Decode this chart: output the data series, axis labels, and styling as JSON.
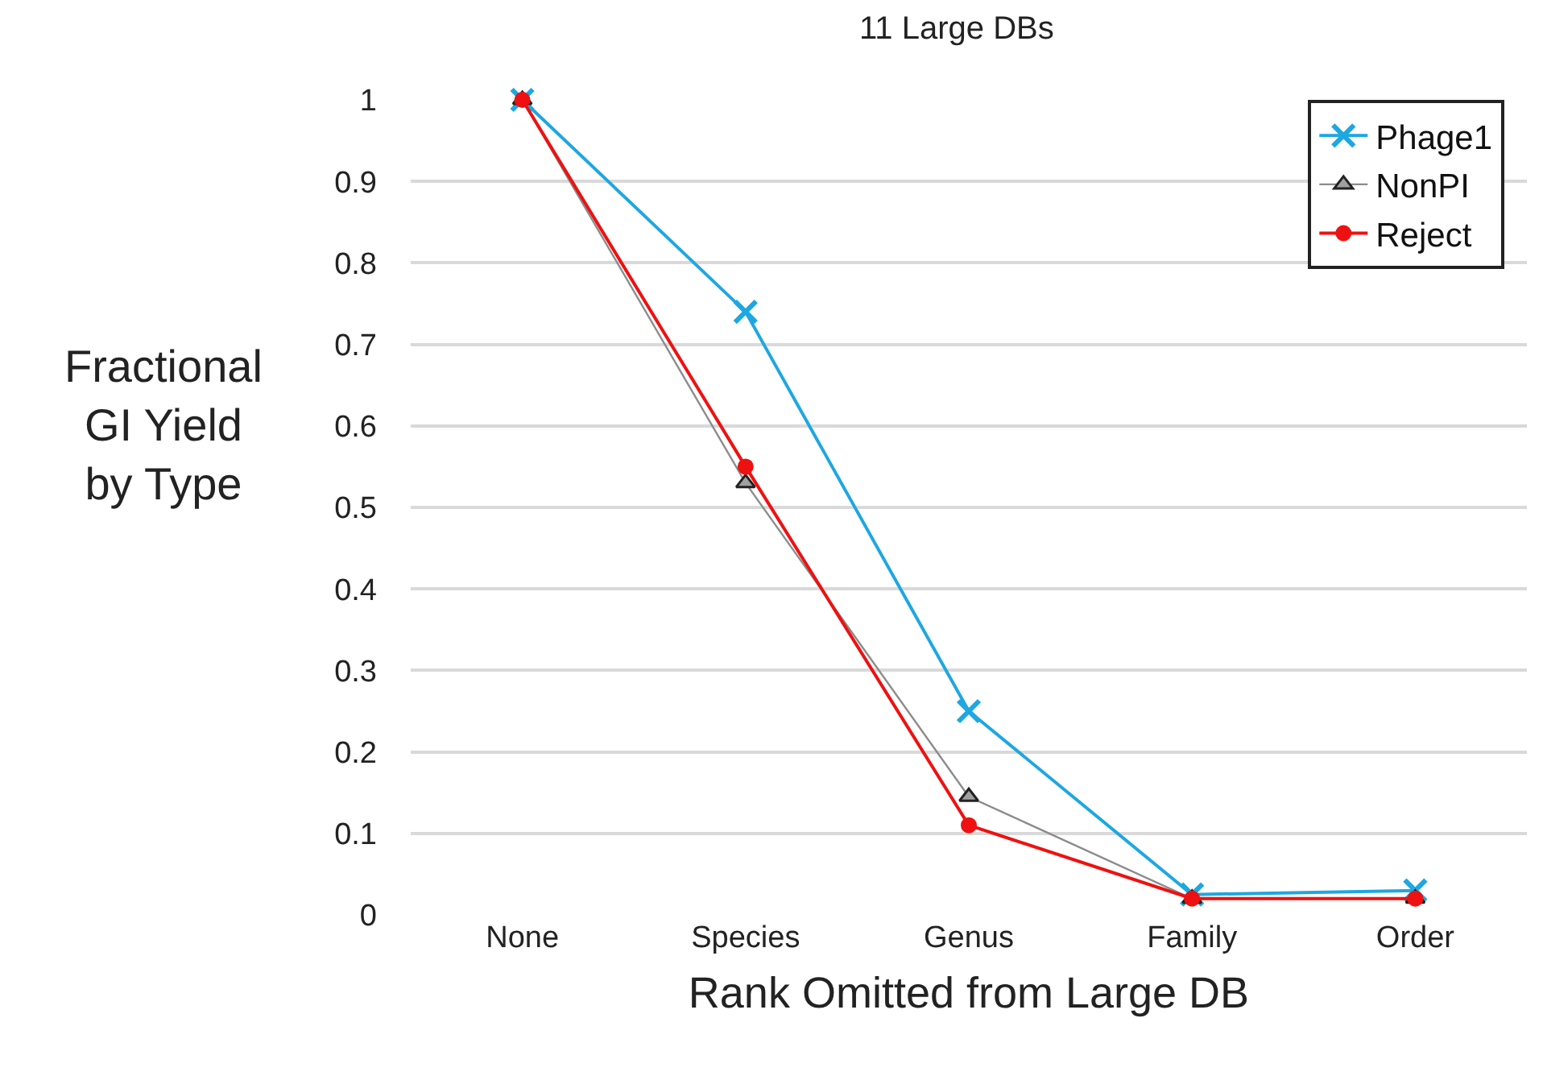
{
  "chart_data": {
    "type": "line",
    "title": "11 Large DBs",
    "xlabel": "Rank Omitted from Large DB",
    "ylabel": "Fractional\nGI Yield\nby Type",
    "categories": [
      "None",
      "Species",
      "Genus",
      "Family",
      "Order"
    ],
    "series": [
      {
        "name": "Phage1",
        "color": "#1ea7e1",
        "marker": "cross",
        "values": [
          1,
          0.74,
          0.25,
          0.025,
          0.03
        ]
      },
      {
        "name": "NonPI",
        "color": "#8c8c8c",
        "marker": "triangle",
        "values": [
          1,
          0.53,
          0.145,
          0.02,
          0.02
        ]
      },
      {
        "name": "Reject",
        "color": "#ee1111",
        "marker": "circle",
        "values": [
          1,
          0.55,
          0.11,
          0.02,
          0.02
        ]
      }
    ],
    "ylim": [
      0,
      1
    ],
    "yticks": [
      0,
      0.1,
      0.2,
      0.3,
      0.4,
      0.5,
      0.6,
      0.7,
      0.8,
      0.9,
      1
    ],
    "grid": "y",
    "legend": "top right"
  }
}
